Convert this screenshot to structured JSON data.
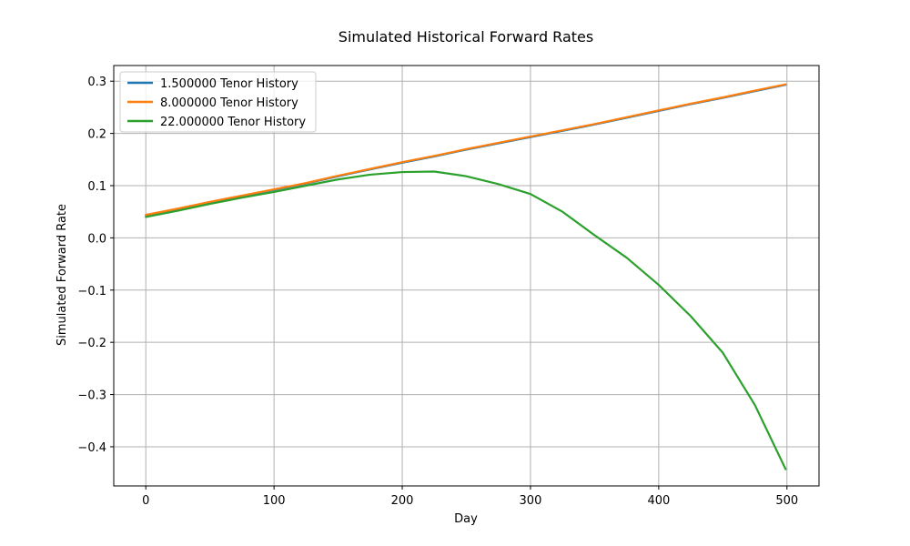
{
  "chart_data": {
    "type": "line",
    "title": "Simulated Historical Forward Rates",
    "xlabel": "Day",
    "ylabel": "Simulated Forward Rate",
    "xlim": [
      -25,
      525
    ],
    "ylim": [
      -0.475,
      0.33
    ],
    "xticks": [
      0,
      100,
      200,
      300,
      400,
      500
    ],
    "yticks": [
      -0.4,
      -0.3,
      -0.2,
      -0.1,
      0.0,
      0.1,
      0.2,
      0.3
    ],
    "xtick_labels": [
      "0",
      "100",
      "200",
      "300",
      "400",
      "500"
    ],
    "ytick_labels": [
      "−0.4",
      "−0.3",
      "−0.2",
      "−0.1",
      "0.0",
      "0.1",
      "0.2",
      "0.3"
    ],
    "grid": true,
    "legend_position": "upper-left",
    "series": [
      {
        "name": "1.500000 Tenor History",
        "color": "#1f77b4",
        "x": [
          0,
          25,
          50,
          75,
          100,
          125,
          150,
          175,
          200,
          225,
          250,
          275,
          300,
          325,
          350,
          375,
          400,
          425,
          450,
          475,
          499
        ],
        "y": [
          0.043,
          0.055,
          0.068,
          0.08,
          0.092,
          0.104,
          0.118,
          0.131,
          0.144,
          0.156,
          0.169,
          0.181,
          0.193,
          0.205,
          0.217,
          0.23,
          0.243,
          0.256,
          0.268,
          0.281,
          0.293
        ]
      },
      {
        "name": "8.000000 Tenor History",
        "color": "#ff7f0e",
        "x": [
          0,
          25,
          50,
          75,
          100,
          125,
          150,
          175,
          200,
          225,
          250,
          275,
          300,
          325,
          350,
          375,
          400,
          425,
          450,
          475,
          499
        ],
        "y": [
          0.044,
          0.056,
          0.069,
          0.081,
          0.093,
          0.105,
          0.119,
          0.132,
          0.145,
          0.157,
          0.17,
          0.182,
          0.194,
          0.206,
          0.218,
          0.231,
          0.244,
          0.257,
          0.269,
          0.282,
          0.294
        ]
      },
      {
        "name": "22.000000 Tenor History",
        "color": "#2ca02c",
        "x": [
          0,
          25,
          50,
          75,
          100,
          125,
          150,
          175,
          200,
          225,
          250,
          275,
          300,
          325,
          350,
          375,
          400,
          425,
          450,
          475,
          499
        ],
        "y": [
          0.04,
          0.052,
          0.065,
          0.077,
          0.088,
          0.1,
          0.112,
          0.121,
          0.126,
          0.127,
          0.118,
          0.103,
          0.084,
          0.05,
          0.005,
          -0.038,
          -0.09,
          -0.15,
          -0.22,
          -0.32,
          -0.443
        ]
      }
    ]
  }
}
